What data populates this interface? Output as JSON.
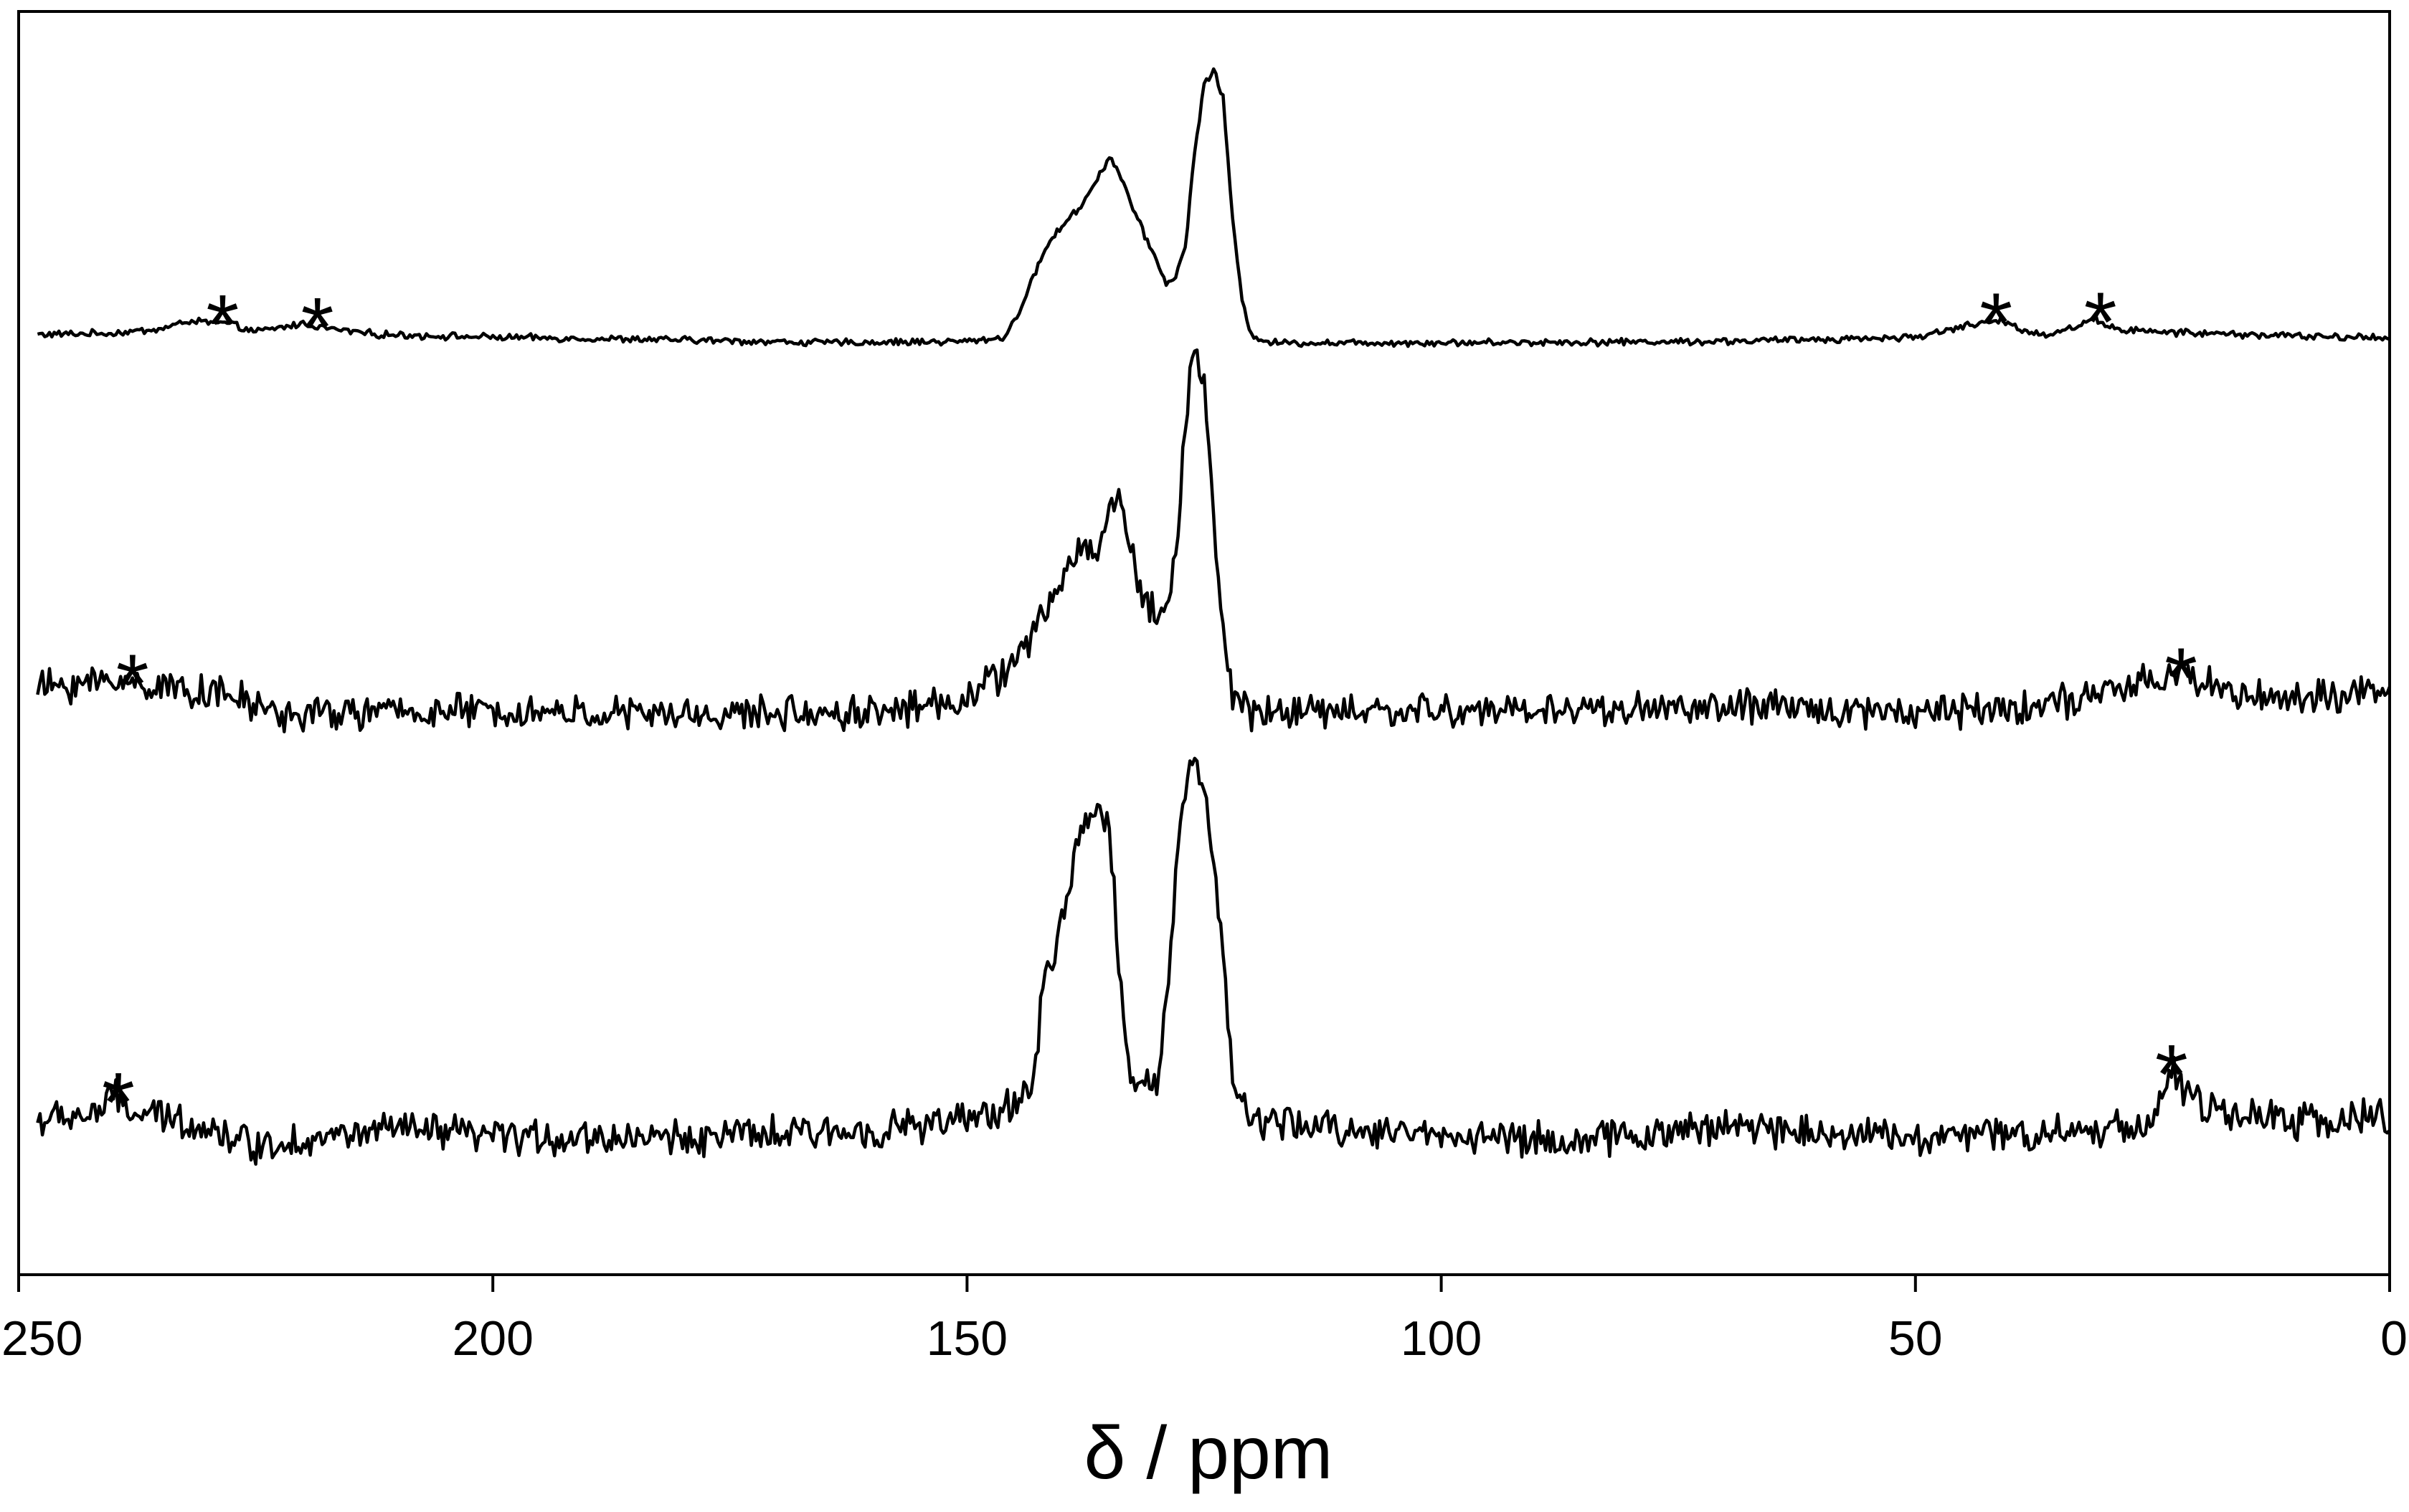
{
  "chart_data": {
    "type": "line",
    "title": "",
    "xlabel": "δ / ppm",
    "ylabel": "",
    "xlim": [
      250,
      0
    ],
    "x_reversed": true,
    "x_ticks": [
      250,
      200,
      150,
      100,
      50,
      0
    ],
    "x_tick_labels": [
      "250",
      "200",
      "150",
      "100",
      "50",
      "0"
    ],
    "y_axis_shown": false,
    "grid": false,
    "legend": "none",
    "line_color": "#000000",
    "series": [
      {
        "points": [
          [
            248,
            0.03
          ],
          [
            240,
            0.035
          ],
          [
            235,
            0.05
          ],
          [
            232,
            0.08
          ],
          [
            228,
            0.07
          ],
          [
            225,
            0.04
          ],
          [
            220,
            0.07
          ],
          [
            217,
            0.05
          ],
          [
            212,
            0.03
          ],
          [
            200,
            0.02
          ],
          [
            180,
            0.01
          ],
          [
            165,
            0.0
          ],
          [
            150,
            0.005
          ],
          [
            146,
            0.02
          ],
          [
            144,
            0.15
          ],
          [
            142,
            0.33
          ],
          [
            140,
            0.43
          ],
          [
            138,
            0.5
          ],
          [
            136,
            0.62
          ],
          [
            135,
            0.68
          ],
          [
            134,
            0.63
          ],
          [
            132,
            0.45
          ],
          [
            130,
            0.3
          ],
          [
            129,
            0.22
          ],
          [
            128,
            0.24
          ],
          [
            127,
            0.35
          ],
          [
            126,
            0.7
          ],
          [
            125,
            0.95
          ],
          [
            124,
            1.0
          ],
          [
            123,
            0.9
          ],
          [
            122,
            0.45
          ],
          [
            121,
            0.15
          ],
          [
            120,
            0.03
          ],
          [
            118,
            0.0
          ],
          [
            100,
            0.0
          ],
          [
            70,
            0.005
          ],
          [
            50,
            0.02
          ],
          [
            45,
            0.06
          ],
          [
            41,
            0.08
          ],
          [
            38,
            0.04
          ],
          [
            36,
            0.03
          ],
          [
            33,
            0.06
          ],
          [
            31,
            0.09
          ],
          [
            29,
            0.05
          ],
          [
            25,
            0.04
          ],
          [
            15,
            0.03
          ],
          [
            5,
            0.02
          ],
          [
            0,
            0.02
          ]
        ],
        "noise": 0.01,
        "markers": [
          {
            "label": "*",
            "x": 228.5
          },
          {
            "label": "*",
            "x": 218.5
          },
          {
            "label": "*",
            "x": 41.5
          },
          {
            "label": "*",
            "x": 30.5
          }
        ]
      },
      {
        "points": [
          [
            248,
            0.12
          ],
          [
            240,
            0.14
          ],
          [
            237,
            0.13
          ],
          [
            233,
            0.12
          ],
          [
            228,
            0.1
          ],
          [
            222,
            0.05
          ],
          [
            210,
            0.06
          ],
          [
            200,
            0.06
          ],
          [
            180,
            0.05
          ],
          [
            160,
            0.06
          ],
          [
            152,
            0.08
          ],
          [
            147,
            0.14
          ],
          [
            143,
            0.25
          ],
          [
            140,
            0.4
          ],
          [
            138,
            0.48
          ],
          [
            136,
            0.47
          ],
          [
            135,
            0.58
          ],
          [
            134,
            0.62
          ],
          [
            133,
            0.52
          ],
          [
            132,
            0.38
          ],
          [
            130,
            0.3
          ],
          [
            129,
            0.33
          ],
          [
            128,
            0.45
          ],
          [
            127,
            0.8
          ],
          [
            126,
            1.0
          ],
          [
            125,
            0.9
          ],
          [
            124,
            0.55
          ],
          [
            123,
            0.25
          ],
          [
            122,
            0.1
          ],
          [
            120,
            0.06
          ],
          [
            100,
            0.06
          ],
          [
            70,
            0.07
          ],
          [
            50,
            0.06
          ],
          [
            40,
            0.07
          ],
          [
            30,
            0.1
          ],
          [
            25,
            0.14
          ],
          [
            22,
            0.15
          ],
          [
            17,
            0.12
          ],
          [
            15,
            0.1
          ],
          [
            8,
            0.09
          ],
          [
            4,
            0.1
          ],
          [
            0,
            0.1
          ]
        ],
        "noise": 0.035,
        "markers": [
          {
            "label": "*",
            "x": 238
          },
          {
            "label": "*",
            "x": 22
          }
        ]
      },
      {
        "points": [
          [
            248,
            0.1
          ],
          [
            242,
            0.12
          ],
          [
            240,
            0.16
          ],
          [
            238,
            0.12
          ],
          [
            232,
            0.1
          ],
          [
            225,
            0.04
          ],
          [
            210,
            0.08
          ],
          [
            200,
            0.06
          ],
          [
            180,
            0.06
          ],
          [
            165,
            0.07
          ],
          [
            150,
            0.1
          ],
          [
            145,
            0.14
          ],
          [
            143,
            0.2
          ],
          [
            142,
            0.42
          ],
          [
            140,
            0.6
          ],
          [
            138,
            0.82
          ],
          [
            136,
            0.88
          ],
          [
            135,
            0.84
          ],
          [
            134,
            0.5
          ],
          [
            133,
            0.22
          ],
          [
            132,
            0.2
          ],
          [
            130,
            0.2
          ],
          [
            129,
            0.4
          ],
          [
            128,
            0.7
          ],
          [
            127,
            0.95
          ],
          [
            126,
            1.0
          ],
          [
            125,
            0.92
          ],
          [
            123,
            0.55
          ],
          [
            122,
            0.18
          ],
          [
            120,
            0.1
          ],
          [
            110,
            0.08
          ],
          [
            85,
            0.05
          ],
          [
            70,
            0.09
          ],
          [
            50,
            0.06
          ],
          [
            30,
            0.08
          ],
          [
            25,
            0.1
          ],
          [
            23,
            0.22
          ],
          [
            21,
            0.16
          ],
          [
            18,
            0.12
          ],
          [
            10,
            0.1
          ],
          [
            0,
            0.11
          ]
        ],
        "noise": 0.035,
        "markers": [
          {
            "label": "*",
            "x": 239.5
          },
          {
            "label": "*",
            "x": 23
          }
        ]
      }
    ]
  }
}
